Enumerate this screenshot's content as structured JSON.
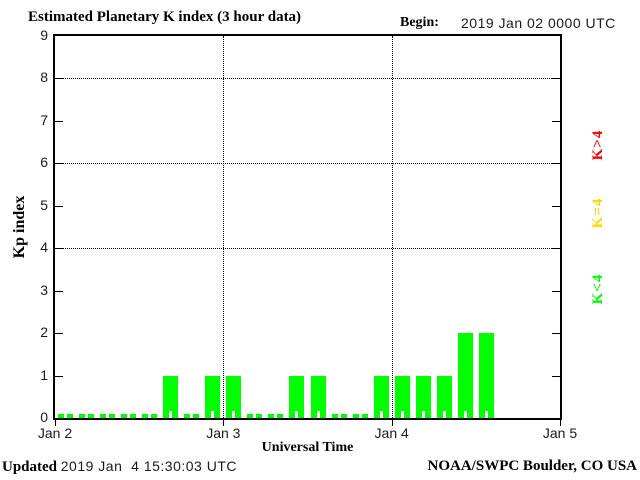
{
  "title": "Estimated Planetary K index (3 hour data)",
  "header": {
    "begin_label": "Begin:",
    "begin_value": "2019 Jan 02 0000 UTC"
  },
  "footer": {
    "updated_label": "Updated",
    "updated_value": "2019 Jan  4 15:30:03 UTC",
    "source": "NOAA/SWPC Boulder, CO USA"
  },
  "chart_data": {
    "type": "bar",
    "title": "Estimated Planetary K index (3 hour data)",
    "xlabel": "Universal Time",
    "ylabel": "Kp index",
    "begin": "2019 Jan 02 0000 UTC",
    "ylim": [
      0,
      9
    ],
    "y_ticks": [
      0,
      1,
      2,
      3,
      4,
      5,
      6,
      7,
      8,
      9
    ],
    "x_tick_labels": [
      "Jan 2",
      "Jan 3",
      "Jan 4",
      "Jan 5"
    ],
    "y_gridlines": [
      4,
      6,
      8
    ],
    "x_gridline_days": [
      1,
      2
    ],
    "grid": "dotted",
    "bar_color": "#00ff00",
    "legend_position": "right",
    "legend": [
      {
        "label": "K>4",
        "color": "#ff0000"
      },
      {
        "label": "K=4",
        "color": "#ffd700"
      },
      {
        "label": "K<4",
        "color": "#00ff00"
      }
    ],
    "series": [
      {
        "day": "Jan 2",
        "values": [
          0,
          0,
          0,
          0,
          0,
          1,
          0,
          1
        ]
      },
      {
        "day": "Jan 3",
        "values": [
          1,
          0,
          0,
          1,
          1,
          0,
          0,
          1
        ]
      },
      {
        "day": "Jan 4",
        "values": [
          1,
          1,
          1,
          2,
          2
        ]
      }
    ]
  }
}
